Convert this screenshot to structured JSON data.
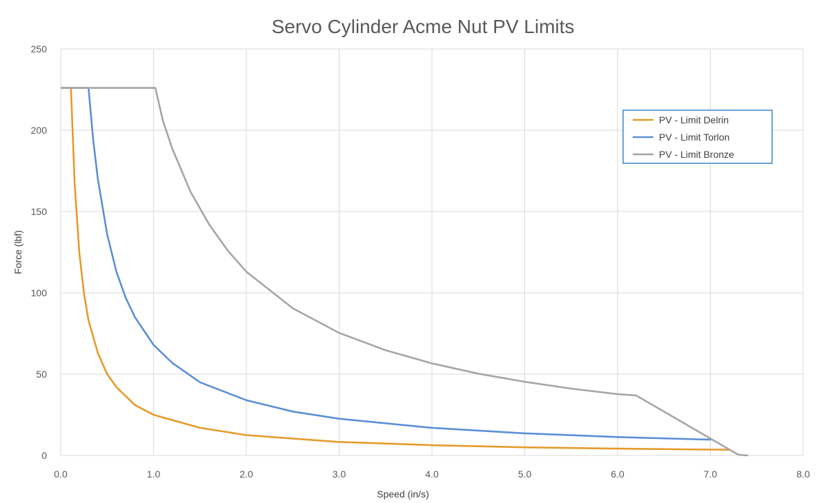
{
  "chart_data": {
    "type": "line",
    "title": "Servo Cylinder Acme Nut PV Limits",
    "xlabel": "Speed (in/s)",
    "ylabel": "Force (lbf)",
    "xlim": [
      0,
      8
    ],
    "ylim": [
      0,
      250
    ],
    "x_ticks": [
      "0.0",
      "1.0",
      "2.0",
      "3.0",
      "4.0",
      "5.0",
      "6.0",
      "7.0",
      "8.0"
    ],
    "y_ticks": [
      "0",
      "50",
      "100",
      "150",
      "200",
      "250"
    ],
    "grid": true,
    "legend_position": "top-right",
    "series": [
      {
        "name": "PV - Limit Delrin",
        "color": "#E69A2A",
        "points": [
          [
            0.01,
            226
          ],
          [
            0.11,
            226
          ],
          [
            0.15,
            167
          ],
          [
            0.2,
            125
          ],
          [
            0.25,
            100
          ],
          [
            0.3,
            83
          ],
          [
            0.4,
            63
          ],
          [
            0.5,
            50
          ],
          [
            0.6,
            42
          ],
          [
            0.8,
            31
          ],
          [
            1.0,
            25
          ],
          [
            1.5,
            17
          ],
          [
            2.0,
            12.5
          ],
          [
            3.0,
            8.3
          ],
          [
            4.0,
            6.3
          ],
          [
            5.0,
            5.0
          ],
          [
            6.0,
            4.2
          ],
          [
            7.0,
            3.6
          ],
          [
            7.2,
            3.5
          ]
        ]
      },
      {
        "name": "PV - Limit Torlon",
        "color": "#5B8FD6",
        "points": [
          [
            0.01,
            226
          ],
          [
            0.3,
            226
          ],
          [
            0.35,
            194
          ],
          [
            0.4,
            170
          ],
          [
            0.5,
            136
          ],
          [
            0.6,
            113
          ],
          [
            0.7,
            97
          ],
          [
            0.8,
            85
          ],
          [
            1.0,
            68
          ],
          [
            1.2,
            57
          ],
          [
            1.5,
            45
          ],
          [
            2.0,
            34
          ],
          [
            2.5,
            27
          ],
          [
            3.0,
            22.6
          ],
          [
            4.0,
            17
          ],
          [
            5.0,
            13.6
          ],
          [
            6.0,
            11.3
          ],
          [
            7.0,
            9.7
          ]
        ]
      },
      {
        "name": "PV - Limit Bronze",
        "color": "#A5A5A5",
        "points": [
          [
            0.01,
            226
          ],
          [
            1.02,
            226
          ],
          [
            1.1,
            206
          ],
          [
            1.2,
            189
          ],
          [
            1.4,
            162
          ],
          [
            1.6,
            142
          ],
          [
            1.8,
            126
          ],
          [
            2.0,
            113
          ],
          [
            2.5,
            90.5
          ],
          [
            3.0,
            75.4
          ],
          [
            3.5,
            64.7
          ],
          [
            4.0,
            56.6
          ],
          [
            4.5,
            50.3
          ],
          [
            5.0,
            45.3
          ],
          [
            5.5,
            41.1
          ],
          [
            6.0,
            37.7
          ],
          [
            6.2,
            36.9
          ],
          [
            7.3,
            0.5
          ],
          [
            7.4,
            0
          ]
        ]
      }
    ]
  }
}
